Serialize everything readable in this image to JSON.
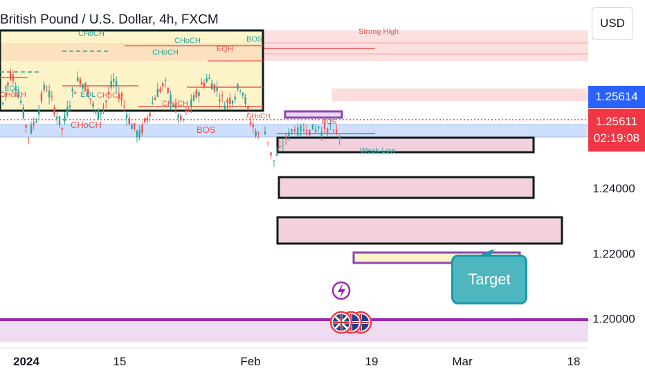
{
  "header": {
    "symbol_title": "British Pound / U.S. Dollar, 4h, FXCM",
    "currency_button": "USD"
  },
  "price_tags": {
    "last_price": "1.25614",
    "current_price": "1.25611",
    "countdown": "02:19:08"
  },
  "annotations": {
    "strong_high": "Strong High",
    "weak_low": "Weak Low",
    "target": "Target",
    "choch": "CHoCH",
    "eqh": "EQH",
    "eql": "EQL",
    "bos": "BOS"
  },
  "colors": {
    "up_candle": "#26a69a",
    "down_candle": "#ef5350",
    "support_line": "#9c27b0",
    "price_tag_blue": "#2962ff",
    "price_tag_red": "#f23645"
  },
  "chart_data": {
    "type": "candlestick",
    "title": "British Pound / U.S. Dollar, 4h, FXCM",
    "currency": "USD",
    "x_ticks": [
      "2024",
      "15",
      "Feb",
      "19",
      "Mar",
      "18"
    ],
    "y_ticks": [
      1.24,
      1.22,
      1.2
    ],
    "y_tick_labels": [
      "1.24000",
      "1.22000",
      "1.20000"
    ],
    "ylim": [
      1.191,
      1.2978
    ],
    "last_price": 1.25614,
    "current_price": 1.25611,
    "price_series_approx": [
      1.266,
      1.276,
      1.268,
      1.256,
      1.262,
      1.272,
      1.265,
      1.258,
      1.268,
      1.274,
      1.27,
      1.262,
      1.266,
      1.273,
      1.267,
      1.26,
      1.256,
      1.262,
      1.269,
      1.272,
      1.266,
      1.26,
      1.265,
      1.27,
      1.274,
      1.271,
      1.266,
      1.268,
      1.272,
      1.261,
      1.256,
      1.253,
      1.259,
      1.262,
      1.258,
      1.26,
      1.258,
      1.256,
      1.259
    ],
    "zones": [
      {
        "label": "Strong High",
        "from": 1.2703,
        "to": 1.2778
      },
      {
        "from": 1.252,
        "to": 1.2555
      },
      {
        "from": 1.2438,
        "to": 1.2485
      },
      {
        "from": 1.2308,
        "to": 1.2374
      },
      {
        "from": 1.2177,
        "to": 1.2262
      },
      {
        "label": "Target",
        "from": 1.2133,
        "to": 1.2164
      }
    ],
    "horizontal_lines": [
      {
        "label": "Strong High",
        "y": 1.2739
      },
      {
        "label": "Weak Low",
        "y": 1.2504
      },
      {
        "y": 1.1965
      }
    ],
    "annotations": [
      "CHoCH",
      "EQH",
      "EQL",
      "BOS",
      "Strong High",
      "Weak Low",
      "Target"
    ]
  }
}
